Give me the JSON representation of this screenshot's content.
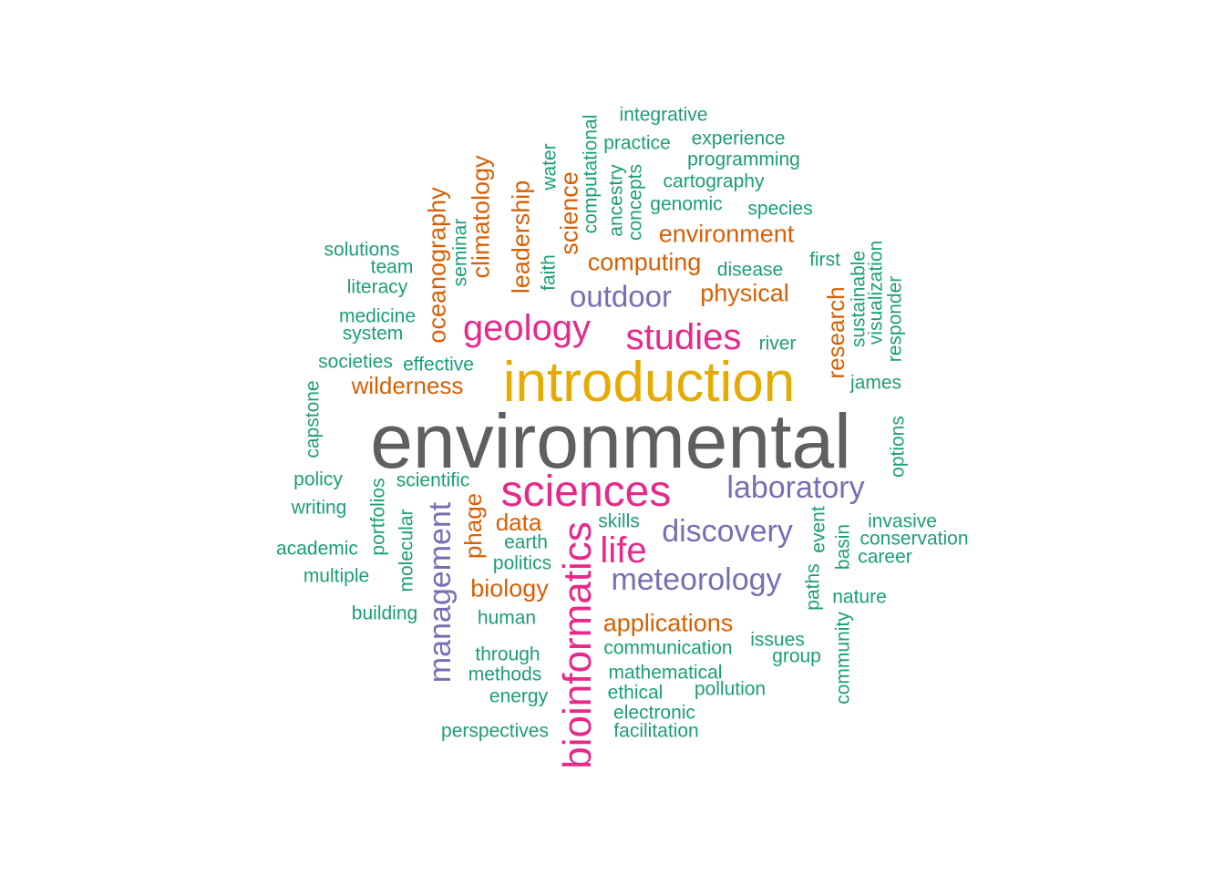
{
  "colors": {
    "gray": "#5f5f5f",
    "gold": "#e6ab02",
    "pink": "#e7298a",
    "purple": "#7570b3",
    "orange": "#d95f02",
    "green": "#1b9e77"
  },
  "words": [
    {
      "text": "environmental",
      "color": "gray"
    },
    {
      "text": "introduction",
      "color": "gold"
    },
    {
      "text": "sciences",
      "color": "pink"
    },
    {
      "text": "bioinformatics",
      "color": "pink"
    },
    {
      "text": "geology",
      "color": "pink"
    },
    {
      "text": "studies",
      "color": "pink"
    },
    {
      "text": "life",
      "color": "pink"
    },
    {
      "text": "laboratory",
      "color": "purple"
    },
    {
      "text": "discovery",
      "color": "purple"
    },
    {
      "text": "meteorology",
      "color": "purple"
    },
    {
      "text": "management",
      "color": "purple"
    },
    {
      "text": "outdoor",
      "color": "purple"
    },
    {
      "text": "applications",
      "color": "orange"
    },
    {
      "text": "biology",
      "color": "orange"
    },
    {
      "text": "data",
      "color": "orange"
    },
    {
      "text": "phage",
      "color": "orange"
    },
    {
      "text": "wilderness",
      "color": "orange"
    },
    {
      "text": "physical",
      "color": "orange"
    },
    {
      "text": "computing",
      "color": "orange"
    },
    {
      "text": "environment",
      "color": "orange"
    },
    {
      "text": "research",
      "color": "orange"
    },
    {
      "text": "oceanography",
      "color": "orange"
    },
    {
      "text": "climatology",
      "color": "orange"
    },
    {
      "text": "leadership",
      "color": "orange"
    },
    {
      "text": "science",
      "color": "orange"
    },
    {
      "text": "integrative",
      "color": "green"
    },
    {
      "text": "practice",
      "color": "green"
    },
    {
      "text": "experience",
      "color": "green"
    },
    {
      "text": "programming",
      "color": "green"
    },
    {
      "text": "cartography",
      "color": "green"
    },
    {
      "text": "genomic",
      "color": "green"
    },
    {
      "text": "species",
      "color": "green"
    },
    {
      "text": "computational",
      "color": "green"
    },
    {
      "text": "ancestry",
      "color": "green"
    },
    {
      "text": "concepts",
      "color": "green"
    },
    {
      "text": "water",
      "color": "green"
    },
    {
      "text": "faith",
      "color": "green"
    },
    {
      "text": "seminar",
      "color": "green"
    },
    {
      "text": "solutions",
      "color": "green"
    },
    {
      "text": "team",
      "color": "green"
    },
    {
      "text": "literacy",
      "color": "green"
    },
    {
      "text": "medicine",
      "color": "green"
    },
    {
      "text": "system",
      "color": "green"
    },
    {
      "text": "societies",
      "color": "green"
    },
    {
      "text": "effective",
      "color": "green"
    },
    {
      "text": "disease",
      "color": "green"
    },
    {
      "text": "first",
      "color": "green"
    },
    {
      "text": "river",
      "color": "green"
    },
    {
      "text": "sustainable",
      "color": "green"
    },
    {
      "text": "visualization",
      "color": "green"
    },
    {
      "text": "responder",
      "color": "green"
    },
    {
      "text": "james",
      "color": "green"
    },
    {
      "text": "options",
      "color": "green"
    },
    {
      "text": "capstone",
      "color": "green"
    },
    {
      "text": "policy",
      "color": "green"
    },
    {
      "text": "scientific",
      "color": "green"
    },
    {
      "text": "writing",
      "color": "green"
    },
    {
      "text": "portfolios",
      "color": "green"
    },
    {
      "text": "academic",
      "color": "green"
    },
    {
      "text": "multiple",
      "color": "green"
    },
    {
      "text": "molecular",
      "color": "green"
    },
    {
      "text": "building",
      "color": "green"
    },
    {
      "text": "skills",
      "color": "green"
    },
    {
      "text": "earth",
      "color": "green"
    },
    {
      "text": "politics",
      "color": "green"
    },
    {
      "text": "human",
      "color": "green"
    },
    {
      "text": "through",
      "color": "green"
    },
    {
      "text": "methods",
      "color": "green"
    },
    {
      "text": "energy",
      "color": "green"
    },
    {
      "text": "perspectives",
      "color": "green"
    },
    {
      "text": "invasive",
      "color": "green"
    },
    {
      "text": "conservation",
      "color": "green"
    },
    {
      "text": "career",
      "color": "green"
    },
    {
      "text": "event",
      "color": "green"
    },
    {
      "text": "basin",
      "color": "green"
    },
    {
      "text": "paths",
      "color": "green"
    },
    {
      "text": "nature",
      "color": "green"
    },
    {
      "text": "community",
      "color": "green"
    },
    {
      "text": "issues",
      "color": "green"
    },
    {
      "text": "group",
      "color": "green"
    },
    {
      "text": "communication",
      "color": "green"
    },
    {
      "text": "mathematical",
      "color": "green"
    },
    {
      "text": "ethical",
      "color": "green"
    },
    {
      "text": "pollution",
      "color": "green"
    },
    {
      "text": "electronic",
      "color": "green"
    },
    {
      "text": "facilitation",
      "color": "green"
    }
  ]
}
